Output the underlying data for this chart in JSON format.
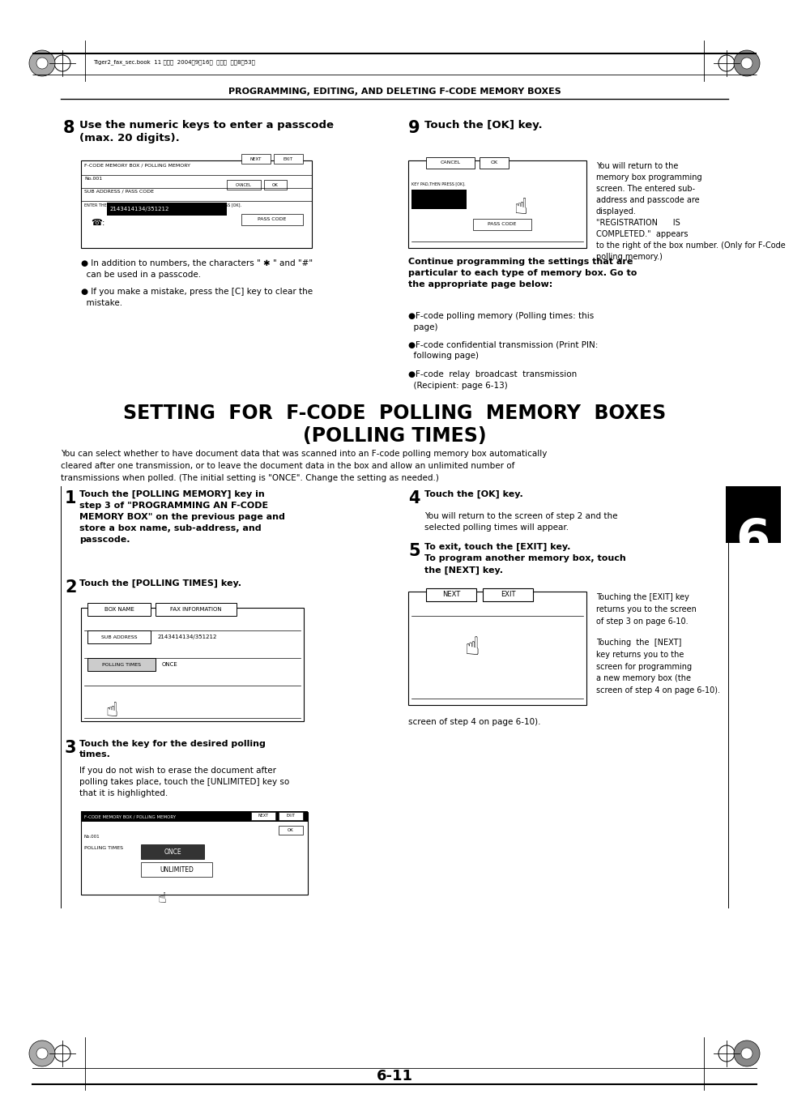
{
  "bg_color": "#ffffff",
  "page_title": "PROGRAMMING, EDITING, AND DELETING F-CODE MEMORY BOXES",
  "header_file_text": "Tiger2_fax_sec.book  11 ページ  2004年9月16日  木曜日  午前8時53分",
  "page_num": "6-11",
  "chapter_num": "6"
}
